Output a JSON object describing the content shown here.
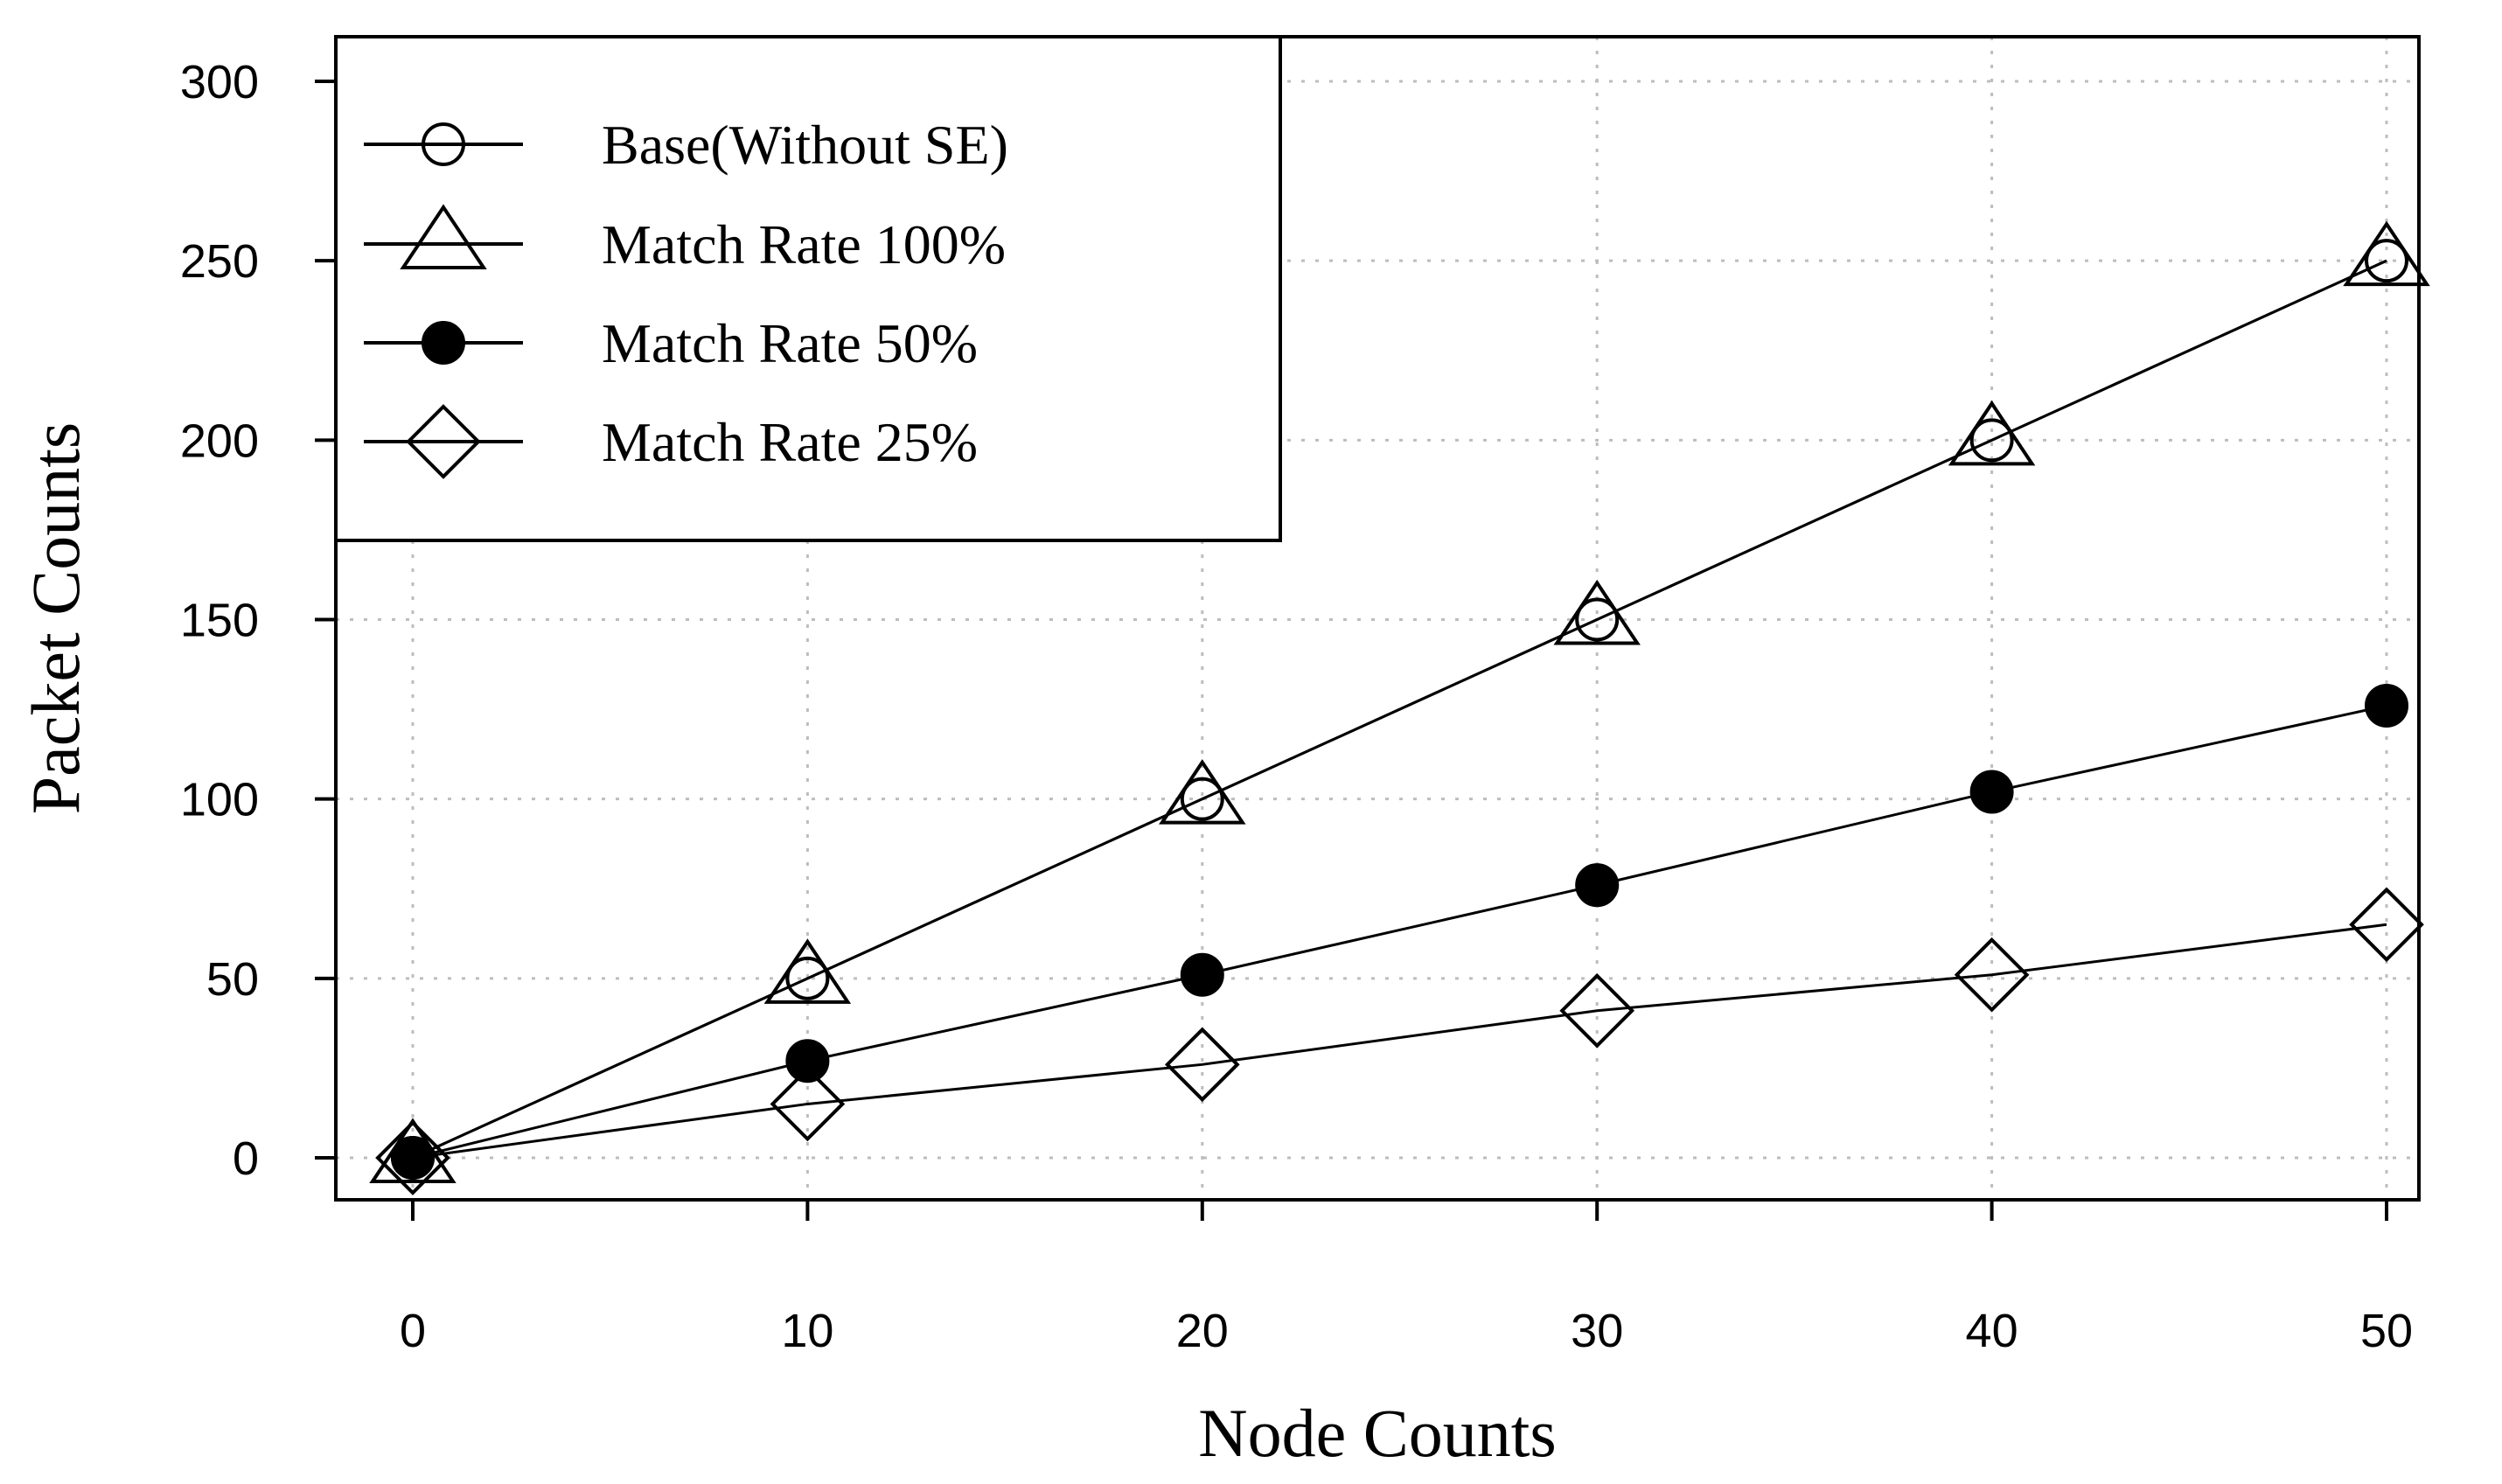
{
  "chart_data": {
    "type": "line",
    "title": "",
    "xlabel": "Node Counts",
    "ylabel": "Packet Counts",
    "x": [
      0,
      10,
      20,
      30,
      40,
      50
    ],
    "xlim": [
      -2,
      51
    ],
    "ylim": [
      -12,
      302
    ],
    "xticks": [
      "0",
      "10",
      "20",
      "30",
      "40",
      "50"
    ],
    "yticks": [
      "0",
      "50",
      "100",
      "150",
      "200",
      "250",
      "300"
    ],
    "grid": true,
    "legend_position": "top-left",
    "series": [
      {
        "name": "Base(Without SE)",
        "marker": "open-circle",
        "values": [
          0,
          50,
          100,
          150,
          200,
          250
        ]
      },
      {
        "name": "Match Rate 100%",
        "marker": "open-triangle",
        "values": [
          0,
          50,
          100,
          150,
          200,
          250
        ]
      },
      {
        "name": "Match Rate 50%",
        "marker": "filled-circle",
        "values": [
          0,
          27,
          51,
          76,
          102,
          126
        ]
      },
      {
        "name": "Match Rate 25%",
        "marker": "open-diamond",
        "values": [
          0,
          15,
          26,
          41,
          51,
          65
        ]
      }
    ]
  }
}
